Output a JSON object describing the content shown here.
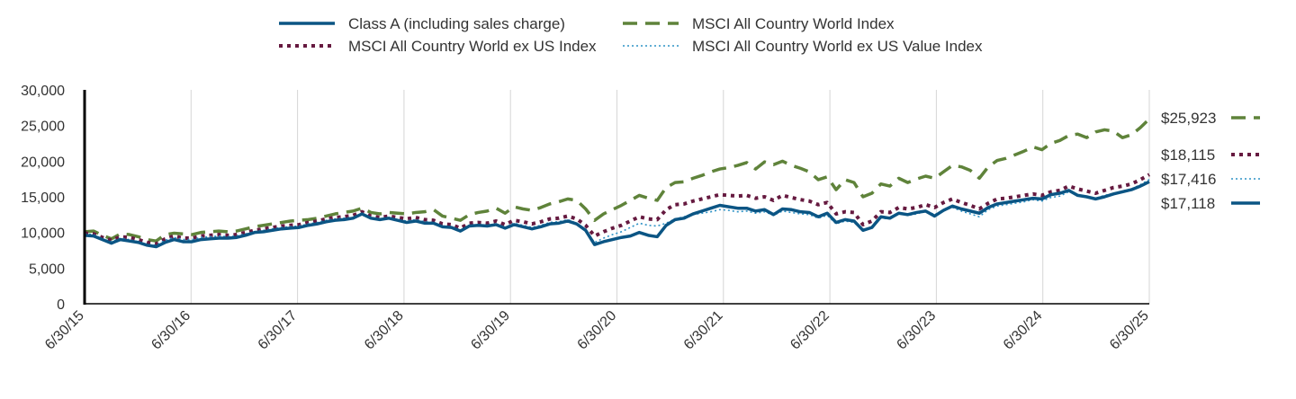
{
  "chart_data": {
    "type": "line",
    "title": "",
    "xlabel": "",
    "ylabel": "",
    "ylim": [
      0,
      30000
    ],
    "yticks": [
      0,
      5000,
      10000,
      15000,
      20000,
      25000,
      30000
    ],
    "ytick_labels": [
      "0",
      "5,000",
      "10,000",
      "15,000",
      "20,000",
      "25,000",
      "30,000"
    ],
    "xticks": [
      "6/30/15",
      "6/30/16",
      "6/30/17",
      "6/30/18",
      "6/30/19",
      "6/30/20",
      "6/30/21",
      "6/30/22",
      "6/30/23",
      "6/30/24",
      "6/30/25"
    ],
    "grid": "vertical",
    "legend_position": "top",
    "series": [
      {
        "name": "Class A (including sales charge)",
        "color": "#0b5584",
        "style": "solid",
        "end_label": "$17,118",
        "values": [
          9600,
          9500,
          9000,
          8500,
          9000,
          8800,
          8600,
          8200,
          8000,
          8600,
          9000,
          8700,
          8700,
          9000,
          9100,
          9200,
          9200,
          9300,
          9600,
          10000,
          10100,
          10300,
          10500,
          10600,
          10700,
          11000,
          11200,
          11500,
          11700,
          11800,
          12000,
          12600,
          12000,
          11800,
          12000,
          11700,
          11400,
          11600,
          11300,
          11300,
          10800,
          10700,
          10200,
          10900,
          11000,
          10900,
          11100,
          10600,
          11100,
          10800,
          10500,
          10800,
          11200,
          11300,
          11600,
          11200,
          10300,
          8300,
          8700,
          9000,
          9300,
          9500,
          10000,
          9600,
          9400,
          11000,
          11800,
          12000,
          12600,
          13000,
          13400,
          13800,
          13600,
          13400,
          13400,
          13000,
          13200,
          12500,
          13300,
          13200,
          12900,
          12800,
          12200,
          12700,
          11400,
          11800,
          11600,
          10300,
          10700,
          12200,
          12000,
          12700,
          12500,
          12800,
          13000,
          12300,
          13100,
          13700,
          13300,
          13000,
          12700,
          13500,
          14000,
          14200,
          14400,
          14600,
          14800,
          14700,
          15300,
          15500,
          15900,
          15200,
          15000,
          14700,
          15000,
          15400,
          15700,
          16000,
          16500,
          17118
        ]
      },
      {
        "name": "MSCI All Country World Index",
        "color": "#5f833a",
        "style": "dash",
        "end_label": "$25,923",
        "values": [
          10100,
          10200,
          9600,
          9100,
          9800,
          9700,
          9400,
          9000,
          8800,
          9700,
          9900,
          9800,
          9700,
          10000,
          10100,
          10200,
          10100,
          10200,
          10500,
          10800,
          11000,
          11200,
          11400,
          11600,
          11700,
          11800,
          12000,
          12300,
          12600,
          12800,
          13000,
          13400,
          12800,
          12600,
          12800,
          12700,
          12600,
          12800,
          12900,
          13200,
          12300,
          12000,
          11700,
          12500,
          12800,
          13000,
          13400,
          12700,
          13600,
          13300,
          13100,
          13500,
          14000,
          14300,
          14700,
          14500,
          13300,
          11700,
          12600,
          13200,
          13800,
          14500,
          15200,
          14800,
          14500,
          16300,
          17000,
          17100,
          17600,
          18000,
          18500,
          18900,
          19100,
          19400,
          19800,
          18900,
          19900,
          19500,
          20000,
          19400,
          19000,
          18500,
          17400,
          17800,
          16000,
          17400,
          17000,
          15000,
          15500,
          16800,
          16500,
          17600,
          17000,
          17500,
          17900,
          17600,
          18500,
          19400,
          19200,
          18700,
          17600,
          19200,
          20100,
          20400,
          20900,
          21400,
          22000,
          21600,
          22500,
          22900,
          23600,
          23800,
          23300,
          24100,
          24400,
          24200,
          23300,
          23700,
          24700,
          25923
        ]
      },
      {
        "name": "MSCI All Country World ex US Index",
        "color": "#661a40",
        "style": "dot",
        "end_label": "$18,115",
        "values": [
          9900,
          9800,
          9300,
          8900,
          9400,
          9300,
          9000,
          8600,
          8400,
          9100,
          9500,
          9200,
          9200,
          9500,
          9600,
          9700,
          9600,
          9700,
          10000,
          10300,
          10500,
          10700,
          10900,
          11000,
          11100,
          11400,
          11600,
          11900,
          12100,
          12200,
          12400,
          12900,
          12300,
          12100,
          12300,
          12100,
          11900,
          12100,
          11800,
          11700,
          11200,
          11100,
          10600,
          11300,
          11400,
          11300,
          11600,
          11100,
          11700,
          11500,
          11200,
          11500,
          11900,
          12000,
          12300,
          11900,
          11000,
          9500,
          10100,
          10600,
          11000,
          11600,
          12200,
          11900,
          11800,
          13200,
          13900,
          14000,
          14400,
          14700,
          15000,
          15300,
          15200,
          15100,
          15200,
          14800,
          15000,
          14500,
          15200,
          14900,
          14600,
          14400,
          13900,
          14200,
          12600,
          12900,
          12800,
          11100,
          11600,
          12900,
          12800,
          13500,
          13300,
          13500,
          13900,
          13500,
          14200,
          14700,
          14200,
          13800,
          13300,
          14100,
          14700,
          14800,
          15000,
          15200,
          15400,
          15200,
          15700,
          15900,
          16500,
          16100,
          15800,
          15500,
          15900,
          16300,
          16500,
          16800,
          17400,
          18115
        ]
      },
      {
        "name": "MSCI All Country World ex US Value Index",
        "color": "#2d92c6",
        "style": "fine-dot",
        "end_label": "$17,416",
        "values": [
          9800,
          9700,
          9100,
          8700,
          9200,
          9000,
          8700,
          8300,
          8200,
          8900,
          9300,
          9000,
          9000,
          9300,
          9400,
          9500,
          9400,
          9500,
          9800,
          10100,
          10300,
          10500,
          10700,
          10800,
          10900,
          11200,
          11400,
          11700,
          11900,
          12000,
          12100,
          12600,
          12000,
          11800,
          12000,
          11800,
          11600,
          11800,
          11500,
          11400,
          10900,
          10800,
          10300,
          11000,
          11100,
          11000,
          11200,
          10700,
          11300,
          11000,
          10700,
          11000,
          11400,
          11500,
          11800,
          11300,
          10300,
          8600,
          9200,
          9700,
          10100,
          10700,
          11300,
          11000,
          10900,
          11300,
          11900,
          12200,
          12500,
          12700,
          12900,
          13200,
          13100,
          12900,
          13000,
          12700,
          12900,
          12400,
          13000,
          12800,
          12600,
          12500,
          12000,
          12400,
          11200,
          11600,
          11400,
          10300,
          10800,
          12000,
          11900,
          12600,
          12400,
          12600,
          13000,
          12500,
          13100,
          13500,
          13000,
          12600,
          12200,
          13200,
          13700,
          13900,
          14100,
          14300,
          14600,
          14400,
          14900,
          15100,
          15700,
          15300,
          15000,
          14800,
          15200,
          15500,
          15800,
          16100,
          16700,
          17416
        ]
      }
    ]
  }
}
